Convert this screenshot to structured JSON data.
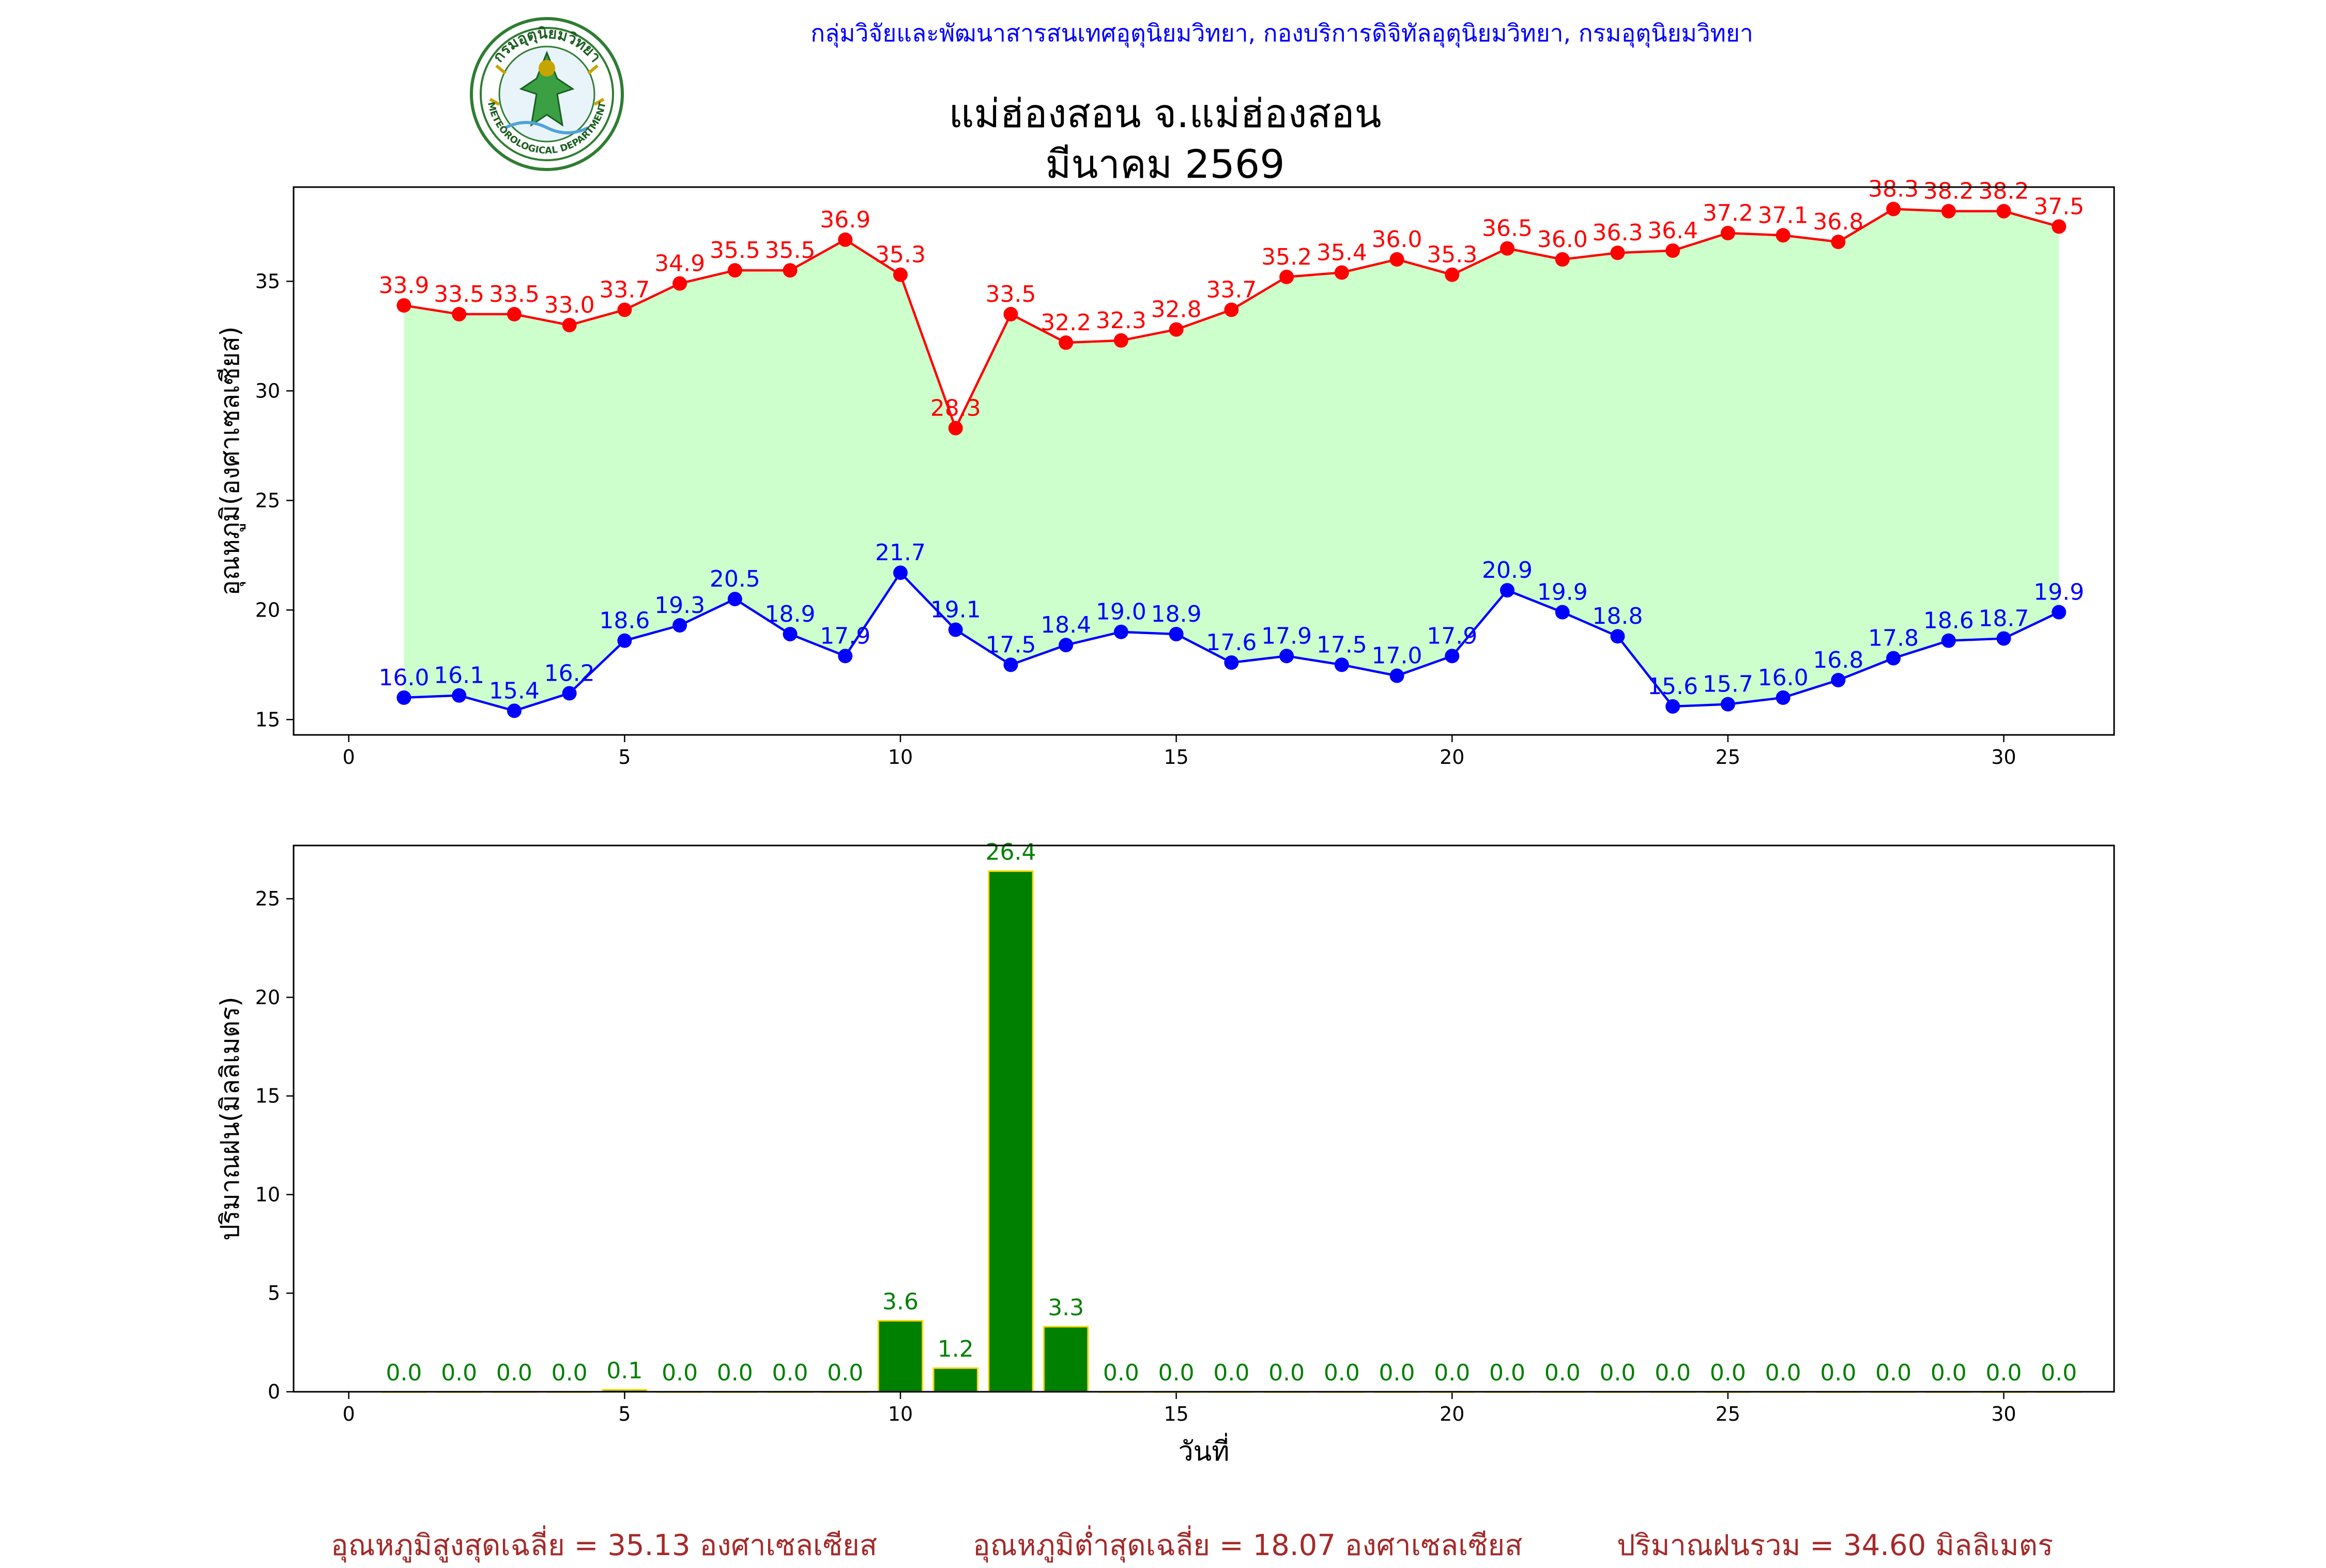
{
  "header": {
    "org_line": "กลุ่มวิจัยและพัฒนาสารสนเทศอุตุนิยมวิทยา, กองบริการดิจิทัลอุตุนิยมวิทยา, กรมอุตุนิยมวิทยา",
    "logo_label": "METEOROLOGICAL DEPARTMENT",
    "logo_top_text": "กรมอุตุนิยมวิทยา",
    "station_title": "แม่ฮ่องสอน จ.แม่ฮ่องสอน",
    "month_title": "มีนาคม 2569"
  },
  "summary": {
    "avg_max": "อุณหภูมิสูงสุดเฉลี่ย = 35.13 องศาเซลเซียส",
    "avg_min": "อุณหภูมิต่ำสุดเฉลี่ย = 18.07 องศาเซลเซียส",
    "total_rain": "ปริมาณฝนรวม = 34.60 มิลลิเมตร"
  },
  "colors": {
    "max_line": "#ff0000",
    "min_line": "#0000ff",
    "fill": "#ccffcc",
    "bar": "#008000",
    "bar_edge": "#ffd700",
    "bar_label": "#008000",
    "summary_text": "#a52a2a"
  },
  "chart_data": [
    {
      "type": "line",
      "ylabel": "อุณหภูมิ(องศาเซลเซียส)",
      "xlim": [
        -1,
        32
      ],
      "ylim": [
        14.3,
        39.3
      ],
      "xticks": [
        0,
        5,
        10,
        15,
        20,
        25,
        30
      ],
      "yticks": [
        15,
        20,
        25,
        30,
        35
      ],
      "x": [
        1,
        2,
        3,
        4,
        5,
        6,
        7,
        8,
        9,
        10,
        11,
        12,
        13,
        14,
        15,
        16,
        17,
        18,
        19,
        20,
        21,
        22,
        23,
        24,
        25,
        26,
        27,
        28,
        29,
        30,
        31
      ],
      "series": [
        {
          "key": "max",
          "values": [
            33.9,
            33.5,
            33.5,
            33.0,
            33.7,
            34.9,
            35.5,
            35.5,
            36.9,
            35.3,
            28.3,
            33.5,
            32.2,
            32.3,
            32.8,
            33.7,
            35.2,
            35.4,
            36.0,
            35.3,
            36.5,
            36.0,
            36.3,
            36.4,
            37.2,
            37.1,
            36.8,
            38.3,
            38.2,
            38.2,
            37.5
          ]
        },
        {
          "key": "min",
          "values": [
            16.0,
            16.1,
            15.4,
            16.2,
            18.6,
            19.3,
            20.5,
            18.9,
            17.9,
            21.7,
            19.1,
            17.5,
            18.4,
            19.0,
            18.9,
            17.6,
            17.9,
            17.5,
            17.0,
            17.9,
            20.9,
            19.9,
            18.8,
            15.6,
            15.7,
            16.0,
            16.8,
            17.8,
            18.6,
            18.7,
            19.9
          ]
        }
      ]
    },
    {
      "type": "bar",
      "xlabel": "วันที่",
      "ylabel": "ปริมาณฝน(มิลลิเมตร)",
      "xlim": [
        -1,
        32
      ],
      "ylim": [
        0,
        27.7
      ],
      "xticks": [
        0,
        5,
        10,
        15,
        20,
        25,
        30
      ],
      "yticks": [
        0,
        5,
        10,
        15,
        20,
        25
      ],
      "x": [
        1,
        2,
        3,
        4,
        5,
        6,
        7,
        8,
        9,
        10,
        11,
        12,
        13,
        14,
        15,
        16,
        17,
        18,
        19,
        20,
        21,
        22,
        23,
        24,
        25,
        26,
        27,
        28,
        29,
        30,
        31
      ],
      "values": [
        0.0,
        0.0,
        0.0,
        0.0,
        0.1,
        0.0,
        0.0,
        0.0,
        0.0,
        3.6,
        1.2,
        26.4,
        3.3,
        0.0,
        0.0,
        0.0,
        0.0,
        0.0,
        0.0,
        0.0,
        0.0,
        0.0,
        0.0,
        0.0,
        0.0,
        0.0,
        0.0,
        0.0,
        0.0,
        0.0,
        0.0
      ]
    }
  ]
}
